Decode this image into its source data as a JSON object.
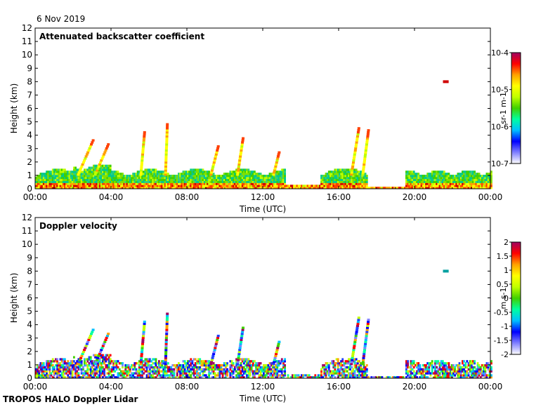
{
  "header": {
    "date": "6 Nov 2019"
  },
  "footer": {
    "instrument": "TROPOS HALO Doppler Lidar"
  },
  "chart_data": [
    {
      "type": "heatmap",
      "title": "Attenuated backscatter coefficient",
      "xlabel": "Time (UTC)",
      "ylabel": "Height (km)",
      "x_ticks": [
        "00:00",
        "04:00",
        "08:00",
        "12:00",
        "16:00",
        "20:00",
        "00:00"
      ],
      "y_ticks": [
        "0",
        "1",
        "2",
        "3",
        "4",
        "5",
        "6",
        "7",
        "8",
        "9",
        "10",
        "11",
        "12"
      ],
      "xlim_hours": [
        0,
        24
      ],
      "ylim_km": [
        0,
        12
      ],
      "colorbar": {
        "scale": "log",
        "range": [
          1e-07,
          0.0001
        ],
        "tick_labels": [
          "10-7",
          "10-6",
          "10-5",
          "10-4"
        ],
        "unit_label": "sr-1 m-1",
        "colormap": [
          "#ffffff",
          "#8080ff",
          "#0000ff",
          "#00c0ff",
          "#00ffa0",
          "#40d000",
          "#c0ff00",
          "#ffff00",
          "#ffa000",
          "#ff0000",
          "#a00060"
        ]
      },
      "features": [
        {
          "desc": "boundary layer aerosol",
          "t_start": 0,
          "t_end": 13,
          "top_km": 1.5
        },
        {
          "desc": "cloud",
          "t_start": 6.8,
          "t_end": 6.9,
          "height_km": 4.9
        },
        {
          "desc": "cloud",
          "t_start": 21.5,
          "t_end": 21.7,
          "height_km": 8.0
        },
        {
          "desc": "cloud",
          "t_start": 16.6,
          "t_end": 17.3,
          "height_km": 4.5
        }
      ]
    },
    {
      "type": "heatmap",
      "title": "Doppler velocity",
      "xlabel": "Time (UTC)",
      "ylabel": "Height (km)",
      "x_ticks": [
        "00:00",
        "04:00",
        "08:00",
        "12:00",
        "16:00",
        "20:00",
        "00:00"
      ],
      "y_ticks": [
        "0",
        "1",
        "2",
        "3",
        "4",
        "5",
        "6",
        "7",
        "8",
        "9",
        "10",
        "11",
        "12"
      ],
      "xlim_hours": [
        0,
        24
      ],
      "ylim_km": [
        0,
        12
      ],
      "colorbar": {
        "scale": "linear",
        "range": [
          -2,
          2
        ],
        "tick_labels": [
          "-2",
          "-1.5",
          "-1",
          "-0.5",
          "0",
          "0.5",
          "1",
          "1.5",
          "2"
        ],
        "unit_label": "m s-1",
        "colormap": [
          "#ffffff",
          "#8080ff",
          "#0000ff",
          "#00c0ff",
          "#00ffa0",
          "#40d000",
          "#c0ff00",
          "#ffff00",
          "#ffa000",
          "#ff0000",
          "#a00060"
        ]
      }
    }
  ]
}
